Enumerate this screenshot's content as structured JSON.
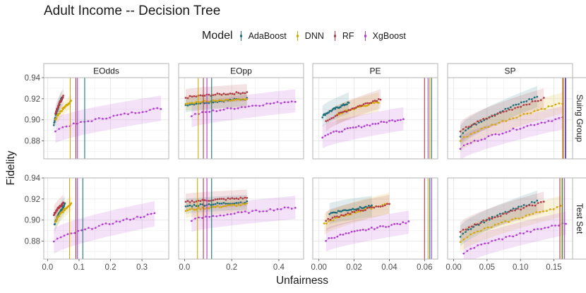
{
  "chart_data": {
    "type": "scatter",
    "title": "Adult Income -- Decision Tree",
    "xlabel": "Unfairness",
    "ylabel": "Fidelity",
    "ylim": [
      0.863,
      0.94
    ],
    "y_ticks": [
      0.88,
      0.9,
      0.92,
      0.94
    ],
    "y_tick_labels": [
      "0.88",
      "0.90",
      "0.92",
      "0.94"
    ],
    "legend": {
      "title": "Model",
      "position": "top",
      "entries": [
        {
          "name": "AdaBoost",
          "color": "#1f6f78"
        },
        {
          "name": "DNN",
          "color": "#d4a900"
        },
        {
          "name": "RF",
          "color": "#b03a48"
        },
        {
          "name": "XgBoost",
          "color": "#b03ccf"
        }
      ]
    },
    "columns": [
      {
        "label": "EOdds",
        "xlim": [
          -0.012,
          0.385
        ],
        "ticks": [
          0.0,
          0.1,
          0.2,
          0.3
        ],
        "tick_labels": [
          "0.0",
          "0.1",
          "0.2",
          "0.3"
        ]
      },
      {
        "label": "EOpp",
        "xlim": [
          -0.025,
          0.505
        ],
        "ticks": [
          0.0,
          0.2,
          0.4
        ],
        "tick_labels": [
          "0.0",
          "0.2",
          "0.4"
        ]
      },
      {
        "label": "PE",
        "xlim": [
          -0.0035,
          0.0675
        ],
        "ticks": [
          0.0,
          0.02,
          0.04,
          0.06
        ],
        "tick_labels": [
          "0.00",
          "0.02",
          "0.04",
          "0.06"
        ]
      },
      {
        "label": "SP",
        "xlim": [
          -0.009,
          0.178
        ],
        "ticks": [
          0.0,
          0.05,
          0.1,
          0.15
        ],
        "tick_labels": [
          "0.00",
          "0.05",
          "0.10",
          "0.15"
        ]
      }
    ],
    "rows": [
      {
        "label": "Suing Group"
      },
      {
        "label": "Test Set"
      }
    ],
    "panels": [
      {
        "row": 0,
        "col": 0,
        "series": [
          {
            "name": "AdaBoost",
            "x_range": [
              0.02,
              0.045
            ],
            "y_start": 0.895,
            "y_end": 0.921,
            "band": 0.007,
            "vline": 0.118
          },
          {
            "name": "DNN",
            "x_range": [
              0.025,
              0.075
            ],
            "y_start": 0.9,
            "y_end": 0.918,
            "band": 0.006,
            "vline": 0.072
          },
          {
            "name": "RF",
            "x_range": [
              0.025,
              0.05
            ],
            "y_start": 0.905,
            "y_end": 0.922,
            "band": 0.008,
            "vline": 0.09
          },
          {
            "name": "XgBoost",
            "x_range": [
              0.025,
              0.36
            ],
            "y_start": 0.89,
            "y_end": 0.911,
            "band": 0.012,
            "vline": 0.095
          }
        ]
      },
      {
        "row": 0,
        "col": 1,
        "series": [
          {
            "name": "AdaBoost",
            "x_range": [
              0.005,
              0.265
            ],
            "y_start": 0.914,
            "y_end": 0.92,
            "band": 0.007,
            "vline": 0.115
          },
          {
            "name": "DNN",
            "x_range": [
              0.005,
              0.265
            ],
            "y_start": 0.916,
            "y_end": 0.919,
            "band": 0.007,
            "vline": 0.058
          },
          {
            "name": "RF",
            "x_range": [
              0.005,
              0.265
            ],
            "y_start": 0.921,
            "y_end": 0.926,
            "band": 0.008,
            "vline": 0.08
          },
          {
            "name": "XgBoost",
            "x_range": [
              0.03,
              0.47
            ],
            "y_start": 0.904,
            "y_end": 0.918,
            "band": 0.011,
            "vline": 0.095
          }
        ]
      },
      {
        "row": 0,
        "col": 2,
        "series": [
          {
            "name": "AdaBoost",
            "x_range": [
              0.002,
              0.017
            ],
            "y_start": 0.903,
            "y_end": 0.916,
            "band": 0.01,
            "vline": 0.064
          },
          {
            "name": "DNN",
            "x_range": [
              0.01,
              0.034
            ],
            "y_start": 0.904,
            "y_end": 0.917,
            "band": 0.009,
            "vline": 0.063
          },
          {
            "name": "RF",
            "x_range": [
              0.004,
              0.035
            ],
            "y_start": 0.898,
            "y_end": 0.92,
            "band": 0.009,
            "vline": 0.06
          },
          {
            "name": "XgBoost",
            "x_range": [
              0.002,
              0.048
            ],
            "y_start": 0.884,
            "y_end": 0.901,
            "band": 0.011,
            "vline": 0.062
          }
        ]
      },
      {
        "row": 0,
        "col": 3,
        "series": [
          {
            "name": "AdaBoost",
            "x_range": [
              0.01,
              0.125
            ],
            "y_start": 0.885,
            "y_end": 0.922,
            "band": 0.01,
            "vline": 0.167
          },
          {
            "name": "DNN",
            "x_range": [
              0.01,
              0.163
            ],
            "y_start": 0.88,
            "y_end": 0.916,
            "band": 0.01,
            "vline": 0.163
          },
          {
            "name": "RF",
            "x_range": [
              0.01,
              0.135
            ],
            "y_start": 0.888,
            "y_end": 0.92,
            "band": 0.01,
            "vline": 0.164
          },
          {
            "name": "XgBoost",
            "x_range": [
              0.01,
              0.163
            ],
            "y_start": 0.873,
            "y_end": 0.902,
            "band": 0.011,
            "vline": 0.168
          }
        ]
      },
      {
        "row": 1,
        "col": 0,
        "series": [
          {
            "name": "AdaBoost",
            "x_range": [
              0.022,
              0.055
            ],
            "y_start": 0.895,
            "y_end": 0.915,
            "band": 0.008,
            "vline": 0.112
          },
          {
            "name": "DNN",
            "x_range": [
              0.025,
              0.075
            ],
            "y_start": 0.898,
            "y_end": 0.916,
            "band": 0.007,
            "vline": 0.07
          },
          {
            "name": "RF",
            "x_range": [
              0.02,
              0.05
            ],
            "y_start": 0.905,
            "y_end": 0.916,
            "band": 0.008,
            "vline": 0.09
          },
          {
            "name": "XgBoost",
            "x_range": [
              0.02,
              0.34
            ],
            "y_start": 0.88,
            "y_end": 0.906,
            "band": 0.012,
            "vline": 0.095
          }
        ]
      },
      {
        "row": 1,
        "col": 1,
        "series": [
          {
            "name": "AdaBoost",
            "x_range": [
              0.005,
              0.265
            ],
            "y_start": 0.913,
            "y_end": 0.917,
            "band": 0.007,
            "vline": 0.115
          },
          {
            "name": "DNN",
            "x_range": [
              0.005,
              0.265
            ],
            "y_start": 0.909,
            "y_end": 0.915,
            "band": 0.007,
            "vline": 0.055
          },
          {
            "name": "RF",
            "x_range": [
              0.005,
              0.265
            ],
            "y_start": 0.917,
            "y_end": 0.921,
            "band": 0.008,
            "vline": 0.08
          },
          {
            "name": "XgBoost",
            "x_range": [
              0.03,
              0.47
            ],
            "y_start": 0.9,
            "y_end": 0.912,
            "band": 0.011,
            "vline": 0.095
          }
        ]
      },
      {
        "row": 1,
        "col": 2,
        "series": [
          {
            "name": "AdaBoost",
            "x_range": [
              0.006,
              0.03
            ],
            "y_start": 0.906,
            "y_end": 0.913,
            "band": 0.01,
            "vline": 0.063
          },
          {
            "name": "DNN",
            "x_range": [
              0.003,
              0.04
            ],
            "y_start": 0.896,
            "y_end": 0.916,
            "band": 0.01,
            "vline": 0.062
          },
          {
            "name": "RF",
            "x_range": [
              0.004,
              0.04
            ],
            "y_start": 0.899,
            "y_end": 0.915,
            "band": 0.009,
            "vline": 0.06
          },
          {
            "name": "XgBoost",
            "x_range": [
              0.004,
              0.051
            ],
            "y_start": 0.881,
            "y_end": 0.898,
            "band": 0.011,
            "vline": 0.064
          }
        ]
      },
      {
        "row": 1,
        "col": 3,
        "series": [
          {
            "name": "AdaBoost",
            "x_range": [
              0.01,
              0.125
            ],
            "y_start": 0.885,
            "y_end": 0.918,
            "band": 0.01,
            "vline": 0.163
          },
          {
            "name": "DNN",
            "x_range": [
              0.01,
              0.16
            ],
            "y_start": 0.88,
            "y_end": 0.913,
            "band": 0.01,
            "vline": 0.162
          },
          {
            "name": "RF",
            "x_range": [
              0.01,
              0.135
            ],
            "y_start": 0.888,
            "y_end": 0.917,
            "band": 0.01,
            "vline": 0.159
          },
          {
            "name": "XgBoost",
            "x_range": [
              0.015,
              0.168
            ],
            "y_start": 0.869,
            "y_end": 0.897,
            "band": 0.011,
            "vline": 0.166
          }
        ]
      }
    ]
  }
}
